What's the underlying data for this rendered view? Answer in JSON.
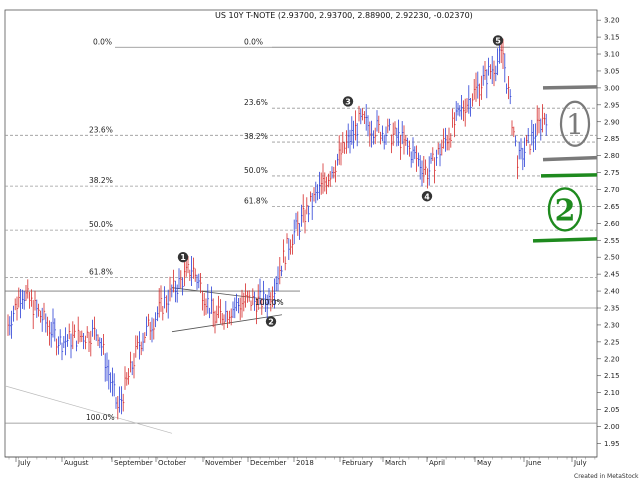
{
  "chart_data": {
    "type": "bar",
    "title": "US 10Y T-NOTE (2.93700, 2.93700, 2.88900, 2.92230, -0.02370)",
    "y_axis": {
      "position": "right",
      "range": [
        1.91,
        3.23
      ],
      "ticks": [
        "3.20",
        "3.15",
        "3.10",
        "3.05",
        "3.00",
        "2.95",
        "2.90",
        "2.85",
        "2.80",
        "2.75",
        "2.70",
        "2.65",
        "2.60",
        "2.55",
        "2.50",
        "2.45",
        "2.40",
        "2.35",
        "2.30",
        "2.25",
        "2.20",
        "2.15",
        "2.10",
        "2.05",
        "2.00",
        "1.95"
      ]
    },
    "x_axis": {
      "labels": [
        "July",
        "August",
        "September",
        "October",
        "November",
        "December",
        "2018",
        "February",
        "March",
        "April",
        "May",
        "June",
        "July"
      ]
    },
    "grid": false,
    "ohlc_points": [
      {
        "date": "Jul 2017",
        "close": 2.3
      },
      {
        "date": "Jul 2017",
        "close": 2.4
      },
      {
        "date": "Aug 2017",
        "close": 2.25
      },
      {
        "date": "Aug 2017",
        "close": 2.28
      },
      {
        "date": "Sep 2017",
        "close": 2.05
      },
      {
        "date": "Sep 2017",
        "close": 2.25
      },
      {
        "date": "Oct 2017",
        "close": 2.37
      },
      {
        "date": "Oct 2017",
        "close": 2.47
      },
      {
        "date": "Nov 2017",
        "close": 2.32
      },
      {
        "date": "Nov 2017",
        "close": 2.37
      },
      {
        "date": "Dec 2017",
        "close": 2.37
      },
      {
        "date": "Jan 2018",
        "close": 2.55
      },
      {
        "date": "Jan 2018",
        "close": 2.65
      },
      {
        "date": "Feb 2018",
        "close": 2.9
      },
      {
        "date": "Mar 2018",
        "close": 2.85
      },
      {
        "date": "Apr 2018",
        "close": 2.75
      },
      {
        "date": "Apr 2018",
        "close": 2.95
      },
      {
        "date": "May 2018",
        "close": 3.1
      },
      {
        "date": "May 2018",
        "close": 2.78
      },
      {
        "date": "Jun 2018",
        "close": 2.92
      }
    ],
    "fib_left": [
      {
        "label": "0.0%",
        "level": 3.12
      },
      {
        "label": "23.6%",
        "level": 2.86
      },
      {
        "label": "38.2%",
        "level": 2.71
      },
      {
        "label": "50.0%",
        "level": 2.58
      },
      {
        "label": "61.8%",
        "level": 2.44
      },
      {
        "label": "100.0%",
        "level": 2.01
      }
    ],
    "fib_right": [
      {
        "label": "0.0%",
        "level": 3.12
      },
      {
        "label": "23.6%",
        "level": 2.94
      },
      {
        "label": "38.2%",
        "level": 2.84
      },
      {
        "label": "50.0%",
        "level": 2.74
      },
      {
        "label": "61.8%",
        "level": 2.65
      },
      {
        "label": "100.0%",
        "level": 2.35
      }
    ],
    "wave_markers": [
      {
        "label": "1",
        "date": "Oct 2017",
        "price": 2.5
      },
      {
        "label": "2",
        "date": "Dec 2017",
        "price": 2.31
      },
      {
        "label": "3",
        "date": "Feb 2018",
        "price": 2.96
      },
      {
        "label": "4",
        "date": "Apr 2018",
        "price": 2.68
      },
      {
        "label": "5",
        "date": "May 2018",
        "price": 3.14
      }
    ],
    "annotations": [
      {
        "text": "1",
        "color": "#7a7a7a",
        "range": [
          2.8,
          3.0
        ]
      },
      {
        "text": "2",
        "color": "#1e8a1e",
        "range": [
          2.56,
          2.74
        ]
      }
    ],
    "credit": "Created in MetaStock"
  }
}
